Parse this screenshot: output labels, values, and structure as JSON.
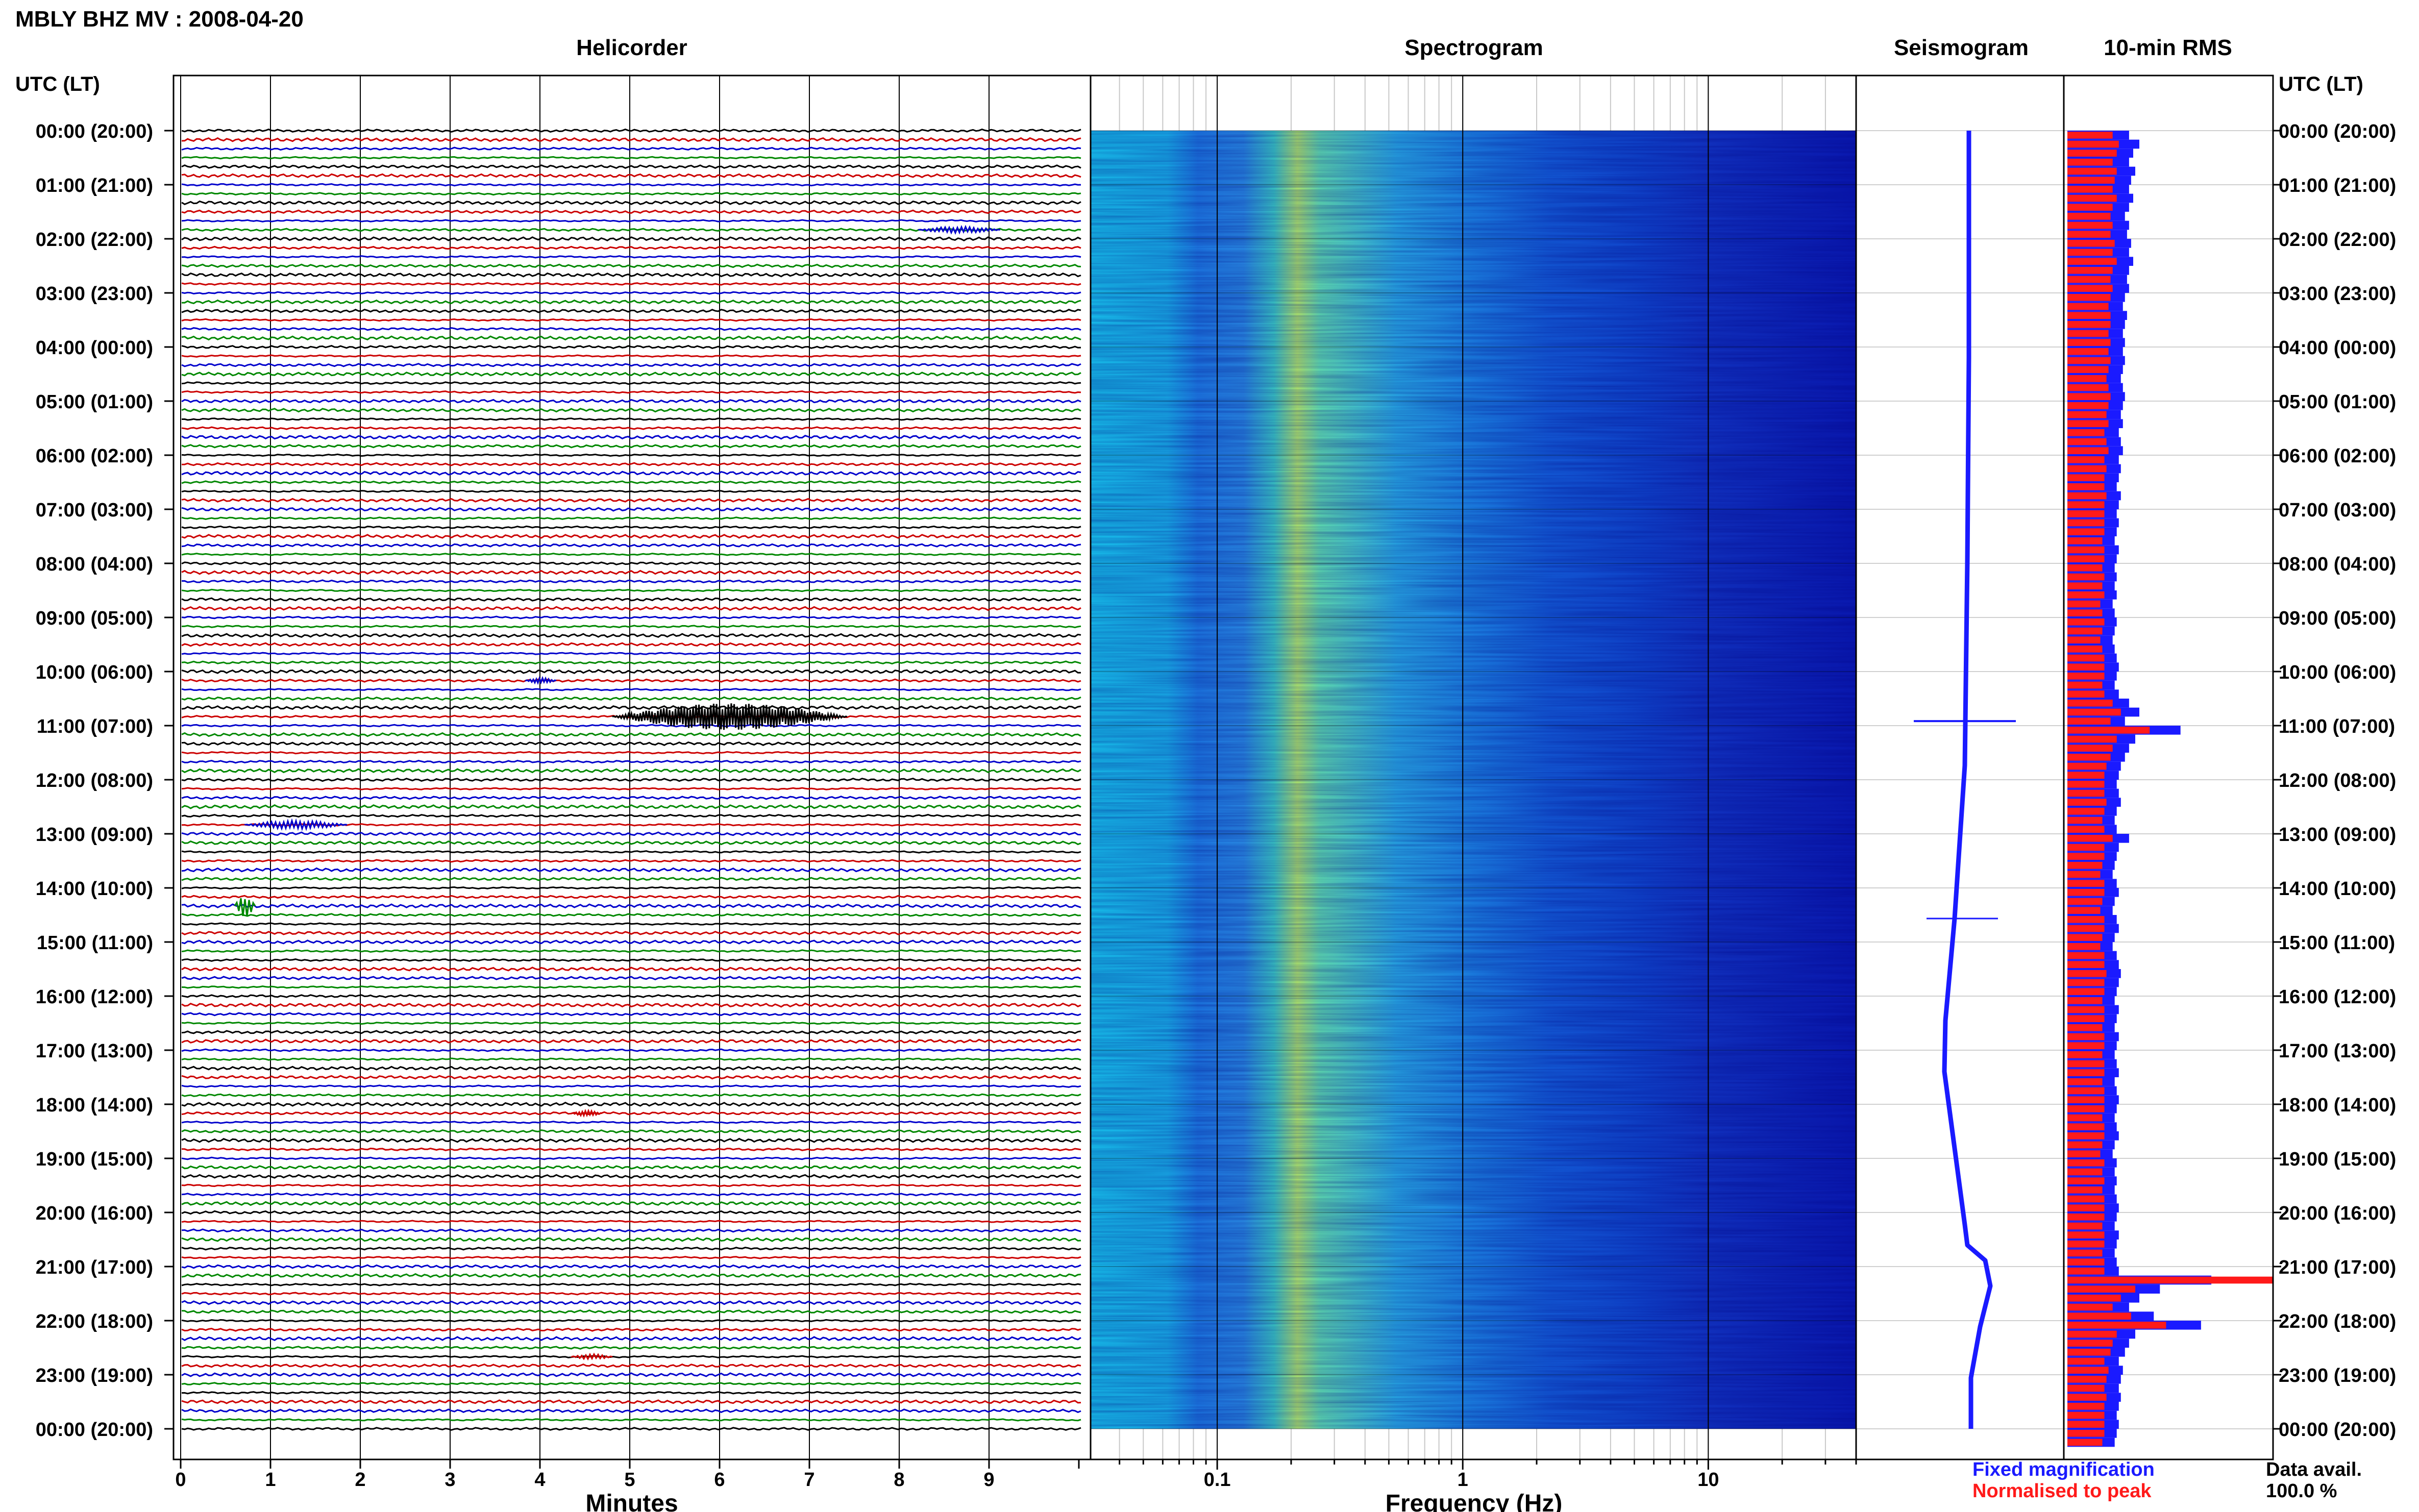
{
  "title": "MBLY BHZ MV : 2008-04-20",
  "panels": {
    "helicorder": "Helicorder",
    "spectrogram": "Spectrogram",
    "seismogram": "Seismogram",
    "rms": "10-min RMS"
  },
  "time_axis": {
    "label_left": "UTC (LT)",
    "label_right": "UTC (LT)",
    "ticks": [
      "00:00 (20:00)",
      "01:00 (21:00)",
      "02:00 (22:00)",
      "03:00 (23:00)",
      "04:00 (00:00)",
      "05:00 (01:00)",
      "06:00 (02:00)",
      "07:00 (03:00)",
      "08:00 (04:00)",
      "09:00 (05:00)",
      "10:00 (06:00)",
      "11:00 (07:00)",
      "12:00 (08:00)",
      "13:00 (09:00)",
      "14:00 (10:00)",
      "15:00 (11:00)",
      "16:00 (12:00)",
      "17:00 (13:00)",
      "18:00 (14:00)",
      "19:00 (15:00)",
      "20:00 (16:00)",
      "21:00 (17:00)",
      "22:00 (18:00)",
      "23:00 (19:00)",
      "00:00 (20:00)"
    ]
  },
  "minutes_axis": {
    "label": "Minutes",
    "ticks": [
      "0",
      "1",
      "2",
      "3",
      "4",
      "5",
      "6",
      "7",
      "8",
      "9"
    ]
  },
  "frequency_axis": {
    "label": "Frequency (Hz)",
    "ticks": [
      "0.1",
      "1",
      "10"
    ]
  },
  "legend": {
    "fixed": "Fixed magnification",
    "normalised": "Normalised to peak"
  },
  "data_avail": {
    "label": "Data avail.",
    "value": "100.0 %"
  },
  "colors": {
    "trace_cycle": [
      "#000000",
      "#cc0000",
      "#0000cc",
      "#008800"
    ],
    "fixed": "#1a1aff",
    "normalised": "#ff1a1a"
  },
  "chart_data": {
    "type": "helicorder",
    "rms_fixed_rel": [
      0.3,
      0.35,
      0.32,
      0.3,
      0.33,
      0.31,
      0.3,
      0.32,
      0.3,
      0.28,
      0.3,
      0.29,
      0.31,
      0.3,
      0.32,
      0.3,
      0.29,
      0.3,
      0.28,
      0.27,
      0.29,
      0.28,
      0.27,
      0.28,
      0.27,
      0.28,
      0.27,
      0.26,
      0.27,
      0.28,
      0.27,
      0.26,
      0.27,
      0.25,
      0.26,
      0.27,
      0.25,
      0.26,
      0.25,
      0.24,
      0.26,
      0.25,
      0.24,
      0.25,
      0.24,
      0.23,
      0.25,
      0.24,
      0.23,
      0.24,
      0.23,
      0.24,
      0.22,
      0.23,
      0.24,
      0.23,
      0.22,
      0.23,
      0.24,
      0.25,
      0.24,
      0.23,
      0.25,
      0.3,
      0.35,
      0.28,
      0.55,
      0.33,
      0.3,
      0.28,
      0.26,
      0.25,
      0.24,
      0.25,
      0.26,
      0.24,
      0.23,
      0.24,
      0.3,
      0.25,
      0.24,
      0.23,
      0.22,
      0.24,
      0.25,
      0.23,
      0.22,
      0.24,
      0.25,
      0.23,
      0.22,
      0.24,
      0.25,
      0.26,
      0.25,
      0.24,
      0.23,
      0.25,
      0.24,
      0.23,
      0.25,
      0.24,
      0.23,
      0.24,
      0.25,
      0.23,
      0.24,
      0.25,
      0.24,
      0.23,
      0.24,
      0.25,
      0.23,
      0.22,
      0.24,
      0.23,
      0.24,
      0.23,
      0.24,
      0.25,
      0.24,
      0.23,
      0.25,
      0.24,
      0.23,
      0.24,
      0.25,
      0.7,
      0.45,
      0.35,
      0.3,
      0.42,
      0.65,
      0.33,
      0.3,
      0.28,
      0.25,
      0.27,
      0.26,
      0.25,
      0.26,
      0.25,
      0.24,
      0.25,
      0.24,
      0.23
    ],
    "rms_norm_rel": [
      0.22,
      0.25,
      0.24,
      0.22,
      0.24,
      0.23,
      0.22,
      0.24,
      0.22,
      0.21,
      0.22,
      0.21,
      0.23,
      0.22,
      0.24,
      0.22,
      0.21,
      0.22,
      0.21,
      0.2,
      0.21,
      0.21,
      0.2,
      0.21,
      0.2,
      0.21,
      0.2,
      0.19,
      0.2,
      0.21,
      0.2,
      0.19,
      0.2,
      0.18,
      0.19,
      0.2,
      0.18,
      0.19,
      0.18,
      0.18,
      0.19,
      0.18,
      0.18,
      0.18,
      0.18,
      0.17,
      0.18,
      0.18,
      0.17,
      0.18,
      0.17,
      0.18,
      0.16,
      0.17,
      0.18,
      0.17,
      0.16,
      0.17,
      0.18,
      0.18,
      0.18,
      0.17,
      0.18,
      0.22,
      0.26,
      0.21,
      0.4,
      0.24,
      0.22,
      0.21,
      0.19,
      0.18,
      0.18,
      0.18,
      0.19,
      0.18,
      0.17,
      0.18,
      0.22,
      0.18,
      0.18,
      0.17,
      0.16,
      0.18,
      0.18,
      0.17,
      0.16,
      0.18,
      0.18,
      0.17,
      0.16,
      0.18,
      0.18,
      0.19,
      0.18,
      0.18,
      0.17,
      0.18,
      0.18,
      0.17,
      0.18,
      0.18,
      0.17,
      0.18,
      0.18,
      0.17,
      0.18,
      0.18,
      0.18,
      0.17,
      0.18,
      0.18,
      0.17,
      0.16,
      0.18,
      0.17,
      0.18,
      0.17,
      0.18,
      0.18,
      0.18,
      0.17,
      0.18,
      0.18,
      0.17,
      0.18,
      0.18,
      1.0,
      0.33,
      0.26,
      0.22,
      0.31,
      0.48,
      0.24,
      0.22,
      0.21,
      0.18,
      0.2,
      0.19,
      0.18,
      0.19,
      0.18,
      0.18,
      0.18,
      0.18,
      0.17
    ]
  }
}
